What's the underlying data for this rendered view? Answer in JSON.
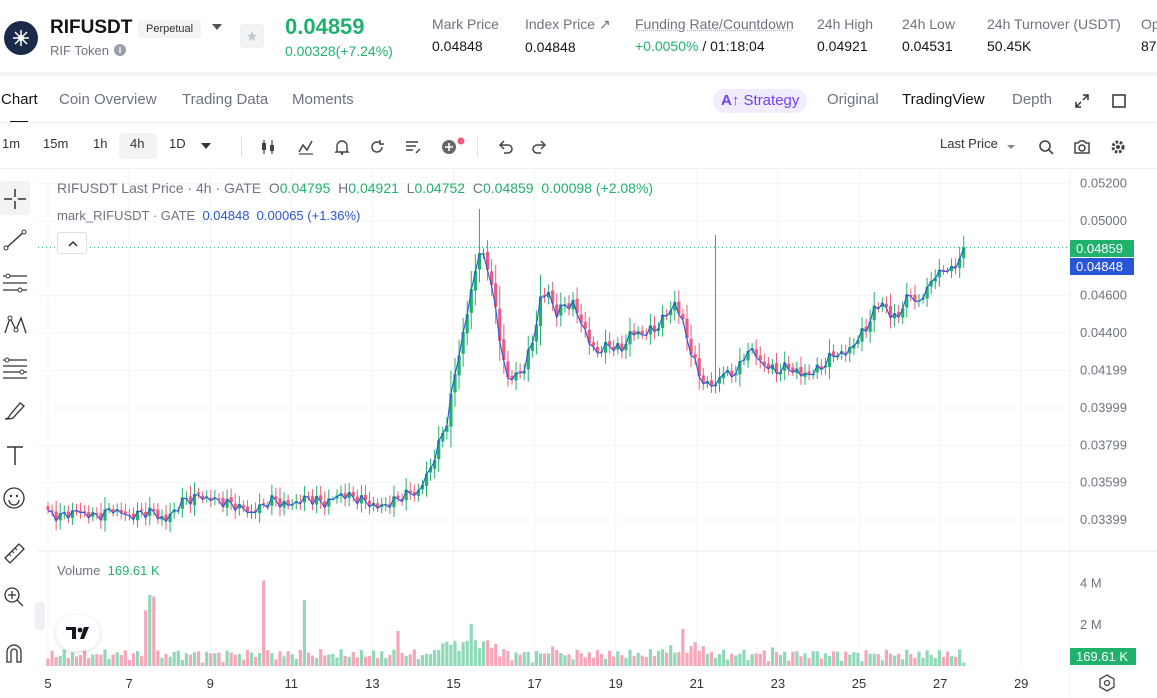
{
  "header": {
    "symbol": "RIFUSDT",
    "contract_type": "Perpetual",
    "token_name": "RIF Token",
    "last_price": "0.04859",
    "change": "0.00328(+7.24%)",
    "stats": [
      {
        "label": "Mark Price",
        "value": "0.04848"
      },
      {
        "label": "Index Price ↗",
        "value": "0.04848"
      },
      {
        "label": "Funding Rate/Countdown",
        "value_green": "+0.0050%",
        "value": " / 01:18:04"
      },
      {
        "label": "24h High",
        "value": "0.04921"
      },
      {
        "label": "24h Low",
        "value": "0.04531"
      },
      {
        "label": "24h Turnover (USDT)",
        "value": "50.45K"
      },
      {
        "label": "Op",
        "value": "87"
      }
    ]
  },
  "tabs": [
    "Chart",
    "Coin Overview",
    "Trading Data",
    "Moments"
  ],
  "view_tabs": {
    "strategy": "Strategy",
    "original": "Original",
    "tradingview": "TradingView",
    "depth": "Depth"
  },
  "toolbar": {
    "intervals": [
      "1m",
      "15m",
      "1h",
      "4h",
      "1D"
    ],
    "active_interval": "4h",
    "price_type": "Last Price"
  },
  "legend": {
    "main_title": "RIFUSDT Last Price · 4h · GATE",
    "o_label": "O",
    "o": "0.04795",
    "h_label": "H",
    "h": "0.04921",
    "l_label": "L",
    "l": "0.04752",
    "c_label": "C",
    "c": "0.04859",
    "change": "0.00098 (+2.08%)",
    "mark_title": "mark_RIFUSDT · GATE",
    "mark_value": "0.04848",
    "mark_change": "0.00065 (+1.36%)",
    "volume_label": "Volume",
    "volume_value": "169.61 K"
  },
  "colors": {
    "up": "#20b26c",
    "down": "#ef5b7a",
    "mark": "#2b55d9",
    "accent": "#6f42f5"
  },
  "chart_data": {
    "type": "candlestick",
    "interval": "4h",
    "x_ticks": [
      "5",
      "7",
      "9",
      "11",
      "13",
      "15",
      "17",
      "19",
      "21",
      "23",
      "25",
      "27",
      "29"
    ],
    "price_ticks": [
      "0.05200",
      "0.05000",
      "0.04600",
      "0.04400",
      "0.04199",
      "0.03999",
      "0.03799",
      "0.03599",
      "0.03399"
    ],
    "volume_ticks": [
      "4 M",
      "2 M"
    ],
    "ylim": [
      0.0332,
      0.0521
    ],
    "volume_ylim": [
      0,
      5000000
    ],
    "last_price_tag": "0.04859",
    "mark_price_tag": "0.04848",
    "volume_tag": "169.61 K",
    "anchors": [
      [
        0,
        0.0344
      ],
      [
        3,
        0.0342
      ],
      [
        7,
        0.0345
      ],
      [
        12,
        0.0342
      ],
      [
        16,
        0.0346
      ],
      [
        20,
        0.0342
      ],
      [
        25,
        0.0345
      ],
      [
        29,
        0.034
      ],
      [
        33,
        0.035
      ],
      [
        37,
        0.0353
      ],
      [
        41,
        0.0351
      ],
      [
        46,
        0.0348
      ],
      [
        50,
        0.0344
      ],
      [
        55,
        0.0351
      ],
      [
        59,
        0.0348
      ],
      [
        64,
        0.0352
      ],
      [
        68,
        0.0349
      ],
      [
        72,
        0.0354
      ],
      [
        77,
        0.0351
      ],
      [
        81,
        0.0347
      ],
      [
        84,
        0.0349
      ],
      [
        88,
        0.0354
      ],
      [
        91,
        0.0355
      ],
      [
        94,
        0.0368
      ],
      [
        96,
        0.038
      ],
      [
        98,
        0.0393
      ],
      [
        100,
        0.0418
      ],
      [
        102,
        0.044
      ],
      [
        104,
        0.0462
      ],
      [
        106,
        0.0485
      ],
      [
        107,
        0.048
      ],
      [
        109,
        0.0468
      ],
      [
        111,
        0.0436
      ],
      [
        113,
        0.0416
      ],
      [
        115,
        0.0417
      ],
      [
        117,
        0.0422
      ],
      [
        119,
        0.0435
      ],
      [
        121,
        0.0458
      ],
      [
        123,
        0.0462
      ],
      [
        125,
        0.045
      ],
      [
        127,
        0.0456
      ],
      [
        129,
        0.0455
      ],
      [
        131,
        0.0447
      ],
      [
        133,
        0.0435
      ],
      [
        135,
        0.043
      ],
      [
        138,
        0.0434
      ],
      [
        141,
        0.0431
      ],
      [
        143,
        0.044
      ],
      [
        146,
        0.044
      ],
      [
        149,
        0.0442
      ],
      [
        152,
        0.045
      ],
      [
        154,
        0.0456
      ],
      [
        156,
        0.0446
      ],
      [
        158,
        0.043
      ],
      [
        160,
        0.0418
      ],
      [
        162,
        0.0412
      ],
      [
        164,
        0.0413
      ],
      [
        166,
        0.0419
      ],
      [
        168,
        0.0418
      ],
      [
        170,
        0.0422
      ],
      [
        172,
        0.0432
      ],
      [
        174,
        0.0428
      ],
      [
        176,
        0.0423
      ],
      [
        179,
        0.042
      ],
      [
        182,
        0.0422
      ],
      [
        185,
        0.0418
      ],
      [
        188,
        0.0419
      ],
      [
        191,
        0.0424
      ],
      [
        193,
        0.0429
      ],
      [
        196,
        0.0429
      ],
      [
        199,
        0.0437
      ],
      [
        201,
        0.0443
      ],
      [
        203,
        0.0452
      ],
      [
        205,
        0.0457
      ],
      [
        207,
        0.0449
      ],
      [
        209,
        0.045
      ],
      [
        212,
        0.0462
      ],
      [
        214,
        0.0455
      ],
      [
        216,
        0.0465
      ],
      [
        218,
        0.047
      ],
      [
        220,
        0.0475
      ],
      [
        222,
        0.0473
      ],
      [
        224,
        0.0481
      ],
      [
        225,
        0.0486
      ]
    ],
    "volume_spikes": {
      "24": 2700000,
      "25": 3450000,
      "26": 3380000,
      "53": 4150000,
      "63": 3200000,
      "86": 1700000,
      "104": 2050000,
      "105": 1250000,
      "112": 820000,
      "156": 1800000,
      "159": 1150000,
      "124": 950000,
      "178": 900000
    }
  }
}
